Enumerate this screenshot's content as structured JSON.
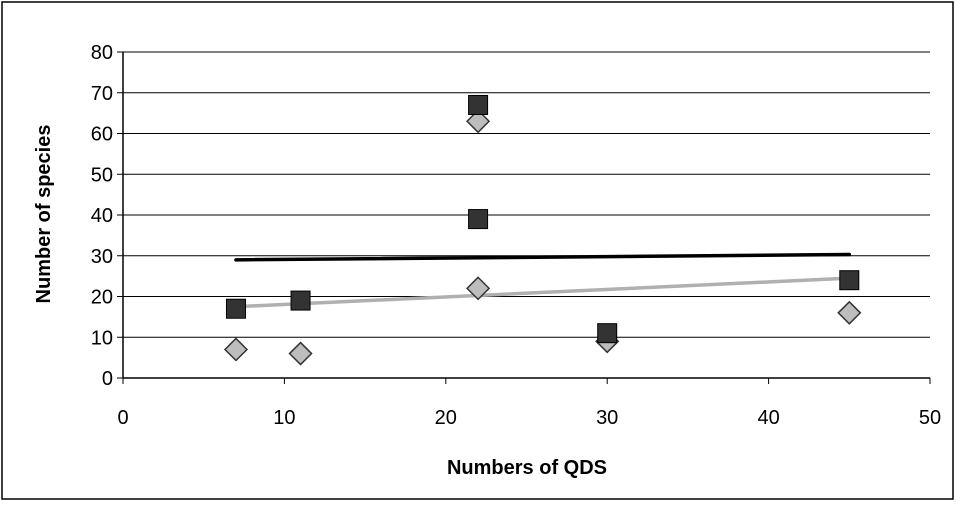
{
  "chart_data": {
    "type": "scatter",
    "title": "",
    "xlabel": "Numbers of QDS",
    "ylabel": "Number of species",
    "xlim": [
      0,
      50
    ],
    "ylim": [
      0,
      80
    ],
    "x_ticks": [
      0,
      10,
      20,
      30,
      40,
      50
    ],
    "y_ticks": [
      0,
      10,
      20,
      30,
      40,
      50,
      60,
      70,
      80
    ],
    "grid": "horizontal",
    "legend": "none",
    "series": [
      {
        "marker": "square",
        "color": "#333333",
        "points": [
          {
            "x": 7,
            "y": 17
          },
          {
            "x": 11,
            "y": 19
          },
          {
            "x": 22,
            "y": 67
          },
          {
            "x": 22,
            "y": 39
          },
          {
            "x": 30,
            "y": 11
          },
          {
            "x": 45,
            "y": 24
          }
        ],
        "trendline": {
          "type": "linear",
          "color": "#000000",
          "x": [
            7,
            45
          ],
          "y": [
            29,
            30.3
          ]
        }
      },
      {
        "marker": "diamond",
        "color": "#bdbdbd",
        "points": [
          {
            "x": 7,
            "y": 7
          },
          {
            "x": 11,
            "y": 6
          },
          {
            "x": 22,
            "y": 63
          },
          {
            "x": 22,
            "y": 22
          },
          {
            "x": 30,
            "y": 9
          },
          {
            "x": 45,
            "y": 16
          }
        ],
        "trendline": {
          "type": "linear",
          "color": "#b0b0b0",
          "x": [
            7,
            45
          ],
          "y": [
            17.5,
            24.5
          ]
        }
      }
    ]
  }
}
